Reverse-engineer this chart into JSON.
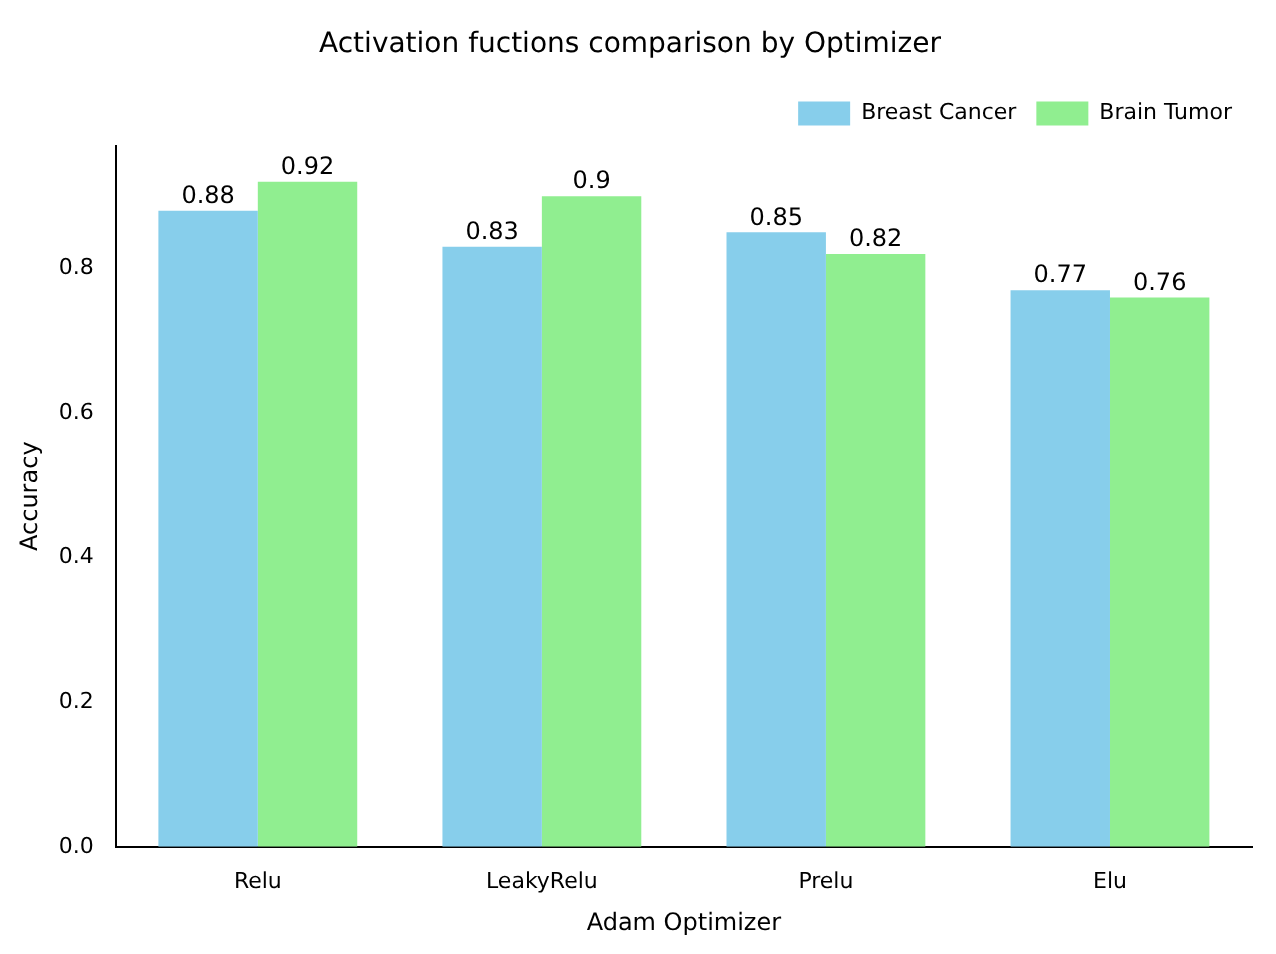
{
  "chart_data": {
    "type": "bar",
    "title": "Activation fuctions comparison by Optimizer",
    "xlabel": "Adam Optimizer",
    "ylabel": "Accuracy",
    "categories": [
      "Relu",
      "LeakyRelu",
      "Prelu",
      "Elu"
    ],
    "series": [
      {
        "name": "Breast Cancer",
        "color": "#87ceeb",
        "values": [
          0.88,
          0.83,
          0.85,
          0.77
        ]
      },
      {
        "name": "Brain Tumor",
        "color": "#90ee90",
        "values": [
          0.92,
          0.9,
          0.82,
          0.76
        ]
      }
    ],
    "ylim": [
      0,
      0.97
    ],
    "yticks": [
      {
        "value": 0,
        "label": "0.0"
      },
      {
        "value": 0.2,
        "label": "0.2"
      },
      {
        "value": 0.4,
        "label": "0.4"
      },
      {
        "value": 0.6,
        "label": "0.6"
      },
      {
        "value": 0.8,
        "label": "0.8"
      }
    ],
    "legend": "top right",
    "data_labels": true
  }
}
